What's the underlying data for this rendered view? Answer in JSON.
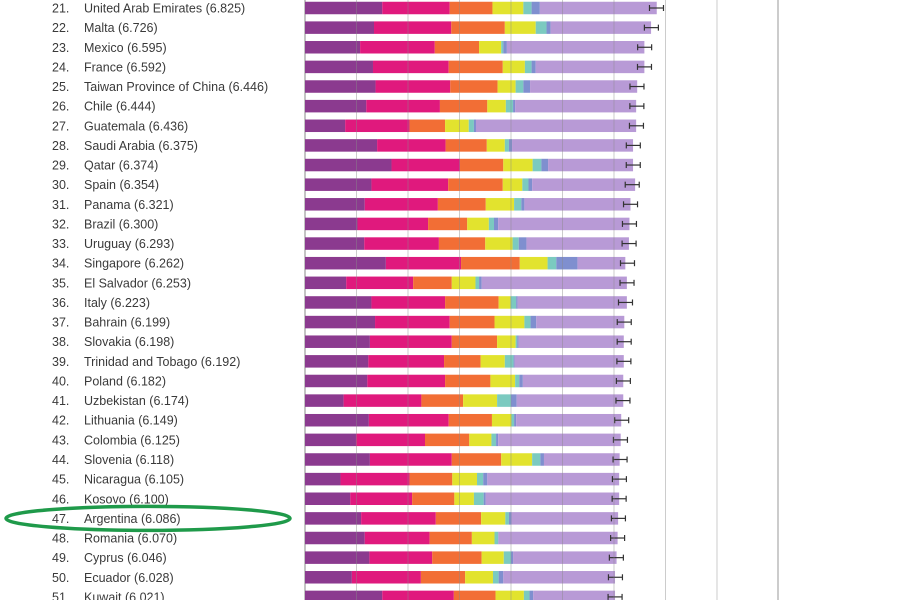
{
  "colors": {
    "dystopia_residual": "#b89ad6",
    "gdp": "#8b3a8f",
    "social_support": "#e0197d",
    "life_expectancy": "#f26e35",
    "freedom": "#e2e32e",
    "generosity": "#7bcac0",
    "corruption": "#7f8fcf",
    "highlight": "#1f9a4a"
  },
  "chart_data": {
    "type": "bar",
    "orientation": "horizontal",
    "stacked": true,
    "categories": [
      "United Arab Emirates",
      "Malta",
      "Mexico",
      "France",
      "Taiwan Province of China",
      "Chile",
      "Guatemala",
      "Saudi Arabia",
      "Qatar",
      "Spain",
      "Panama",
      "Brazil",
      "Uruguay",
      "Singapore",
      "El Salvador",
      "Italy",
      "Bahrain",
      "Slovakia",
      "Trinidad and Tobago",
      "Poland",
      "Uzbekistan",
      "Lithuania",
      "Colombia",
      "Slovenia",
      "Nicaragua",
      "Kosovo",
      "Argentina",
      "Romania",
      "Cyprus",
      "Ecuador",
      "Kuwait"
    ],
    "labels": [
      "21. United Arab Emirates (6.825)",
      "22. Malta (6.726)",
      "23. Mexico (6.595)",
      "24. France (6.592)",
      "25. Taiwan Province of China (6.446)",
      "26. Chile (6.444)",
      "27. Guatemala (6.436)",
      "28. Saudi Arabia (6.375)",
      "29. Qatar (6.374)",
      "30. Spain (6.354)",
      "31. Panama (6.321)",
      "32. Brazil (6.300)",
      "33. Uruguay (6.293)",
      "34. Singapore (6.262)",
      "35. El Salvador (6.253)",
      "36. Italy (6.223)",
      "37. Bahrain (6.199)",
      "38. Slovakia (6.198)",
      "39. Trinidad and Tobago (6.192)",
      "40. Poland (6.182)",
      "41. Uzbekistan (6.174)",
      "42. Lithuania (6.149)",
      "43. Colombia (6.125)",
      "44. Slovenia (6.118)",
      "45. Nicaragua (6.105)",
      "46. Kosovo (6.100)",
      "47. Argentina (6.086)",
      "48. Romania (6.070)",
      "49. Cyprus (6.046)",
      "50. Ecuador (6.028)",
      "51. Kuwait (6.021)"
    ],
    "totals": [
      6.825,
      6.726,
      6.595,
      6.592,
      6.446,
      6.444,
      6.436,
      6.375,
      6.374,
      6.354,
      6.321,
      6.3,
      6.293,
      6.262,
      6.253,
      6.223,
      6.199,
      6.198,
      6.192,
      6.182,
      6.174,
      6.149,
      6.125,
      6.118,
      6.105,
      6.1,
      6.086,
      6.07,
      6.046,
      6.028,
      6.021
    ],
    "series": [
      {
        "color_key": "gdp",
        "values": [
          1.5,
          1.34,
          1.07,
          1.32,
          1.37,
          1.19,
          0.78,
          1.4,
          1.68,
          1.29,
          1.16,
          1.02,
          1.15,
          1.57,
          0.8,
          1.29,
          1.36,
          1.26,
          1.23,
          1.21,
          0.75,
          1.24,
          0.99,
          1.26,
          0.69,
          0.88,
          1.09,
          1.16,
          1.25,
          0.91,
          1.5
        ]
      },
      {
        "color_key": "social_support",
        "values": [
          1.31,
          1.5,
          1.45,
          1.47,
          1.45,
          1.43,
          1.25,
          1.33,
          1.33,
          1.49,
          1.42,
          1.37,
          1.45,
          1.46,
          1.3,
          1.43,
          1.45,
          1.59,
          1.47,
          1.51,
          1.51,
          1.55,
          1.34,
          1.59,
          1.34,
          1.2,
          1.45,
          1.26,
          1.22,
          1.34,
          1.39
        ]
      },
      {
        "color_key": "life_expectancy",
        "values": [
          0.83,
          1.04,
          0.86,
          1.05,
          0.92,
          0.92,
          0.69,
          0.8,
          0.84,
          1.06,
          0.93,
          0.76,
          0.9,
          1.14,
          0.75,
          1.04,
          0.87,
          0.88,
          0.71,
          0.88,
          0.81,
          0.84,
          0.86,
          0.96,
          0.83,
          0.82,
          0.88,
          0.82,
          0.96,
          0.86,
          0.81
        ]
      },
      {
        "color_key": "freedom",
        "values": [
          0.6,
          0.6,
          0.43,
          0.43,
          0.35,
          0.36,
          0.46,
          0.35,
          0.57,
          0.38,
          0.55,
          0.42,
          0.53,
          0.54,
          0.46,
          0.23,
          0.58,
          0.36,
          0.47,
          0.48,
          0.66,
          0.38,
          0.43,
          0.6,
          0.48,
          0.38,
          0.47,
          0.44,
          0.43,
          0.54,
          0.55
        ]
      },
      {
        "color_key": "generosity",
        "values": [
          0.16,
          0.21,
          0.04,
          0.13,
          0.15,
          0.14,
          0.1,
          0.08,
          0.17,
          0.12,
          0.14,
          0.1,
          0.12,
          0.17,
          0.07,
          0.11,
          0.12,
          0.03,
          0.17,
          0.08,
          0.27,
          0.05,
          0.09,
          0.16,
          0.12,
          0.19,
          0.07,
          0.07,
          0.14,
          0.11,
          0.11
        ]
      },
      {
        "color_key": "corruption",
        "values": [
          0.16,
          0.08,
          0.07,
          0.08,
          0.13,
          0.04,
          0.04,
          0.06,
          0.13,
          0.07,
          0.06,
          0.08,
          0.15,
          0.41,
          0.05,
          0.03,
          0.11,
          0.03,
          0.02,
          0.07,
          0.11,
          0.04,
          0.04,
          0.07,
          0.08,
          0.04,
          0.05,
          0.01,
          0.04,
          0.09,
          0.07
        ]
      },
      {
        "color_key": "dystopia_residual",
        "values": [
          2.27,
          1.95,
          2.67,
          2.11,
          2.08,
          2.35,
          3.11,
          2.35,
          1.65,
          2.0,
          2.06,
          2.55,
          1.99,
          0.93,
          2.82,
          2.12,
          1.71,
          2.04,
          2.12,
          1.95,
          2.07,
          2.04,
          2.38,
          1.47,
          2.56,
          2.59,
          2.07,
          2.31,
          2.01,
          2.17,
          1.59
        ]
      }
    ],
    "xlim": [
      0,
      8
    ],
    "gridlines": [
      0,
      1,
      2,
      3,
      4,
      5,
      6,
      7,
      8
    ],
    "error_bars": true,
    "highlight": {
      "index": 26,
      "style": "green-ellipse"
    }
  }
}
